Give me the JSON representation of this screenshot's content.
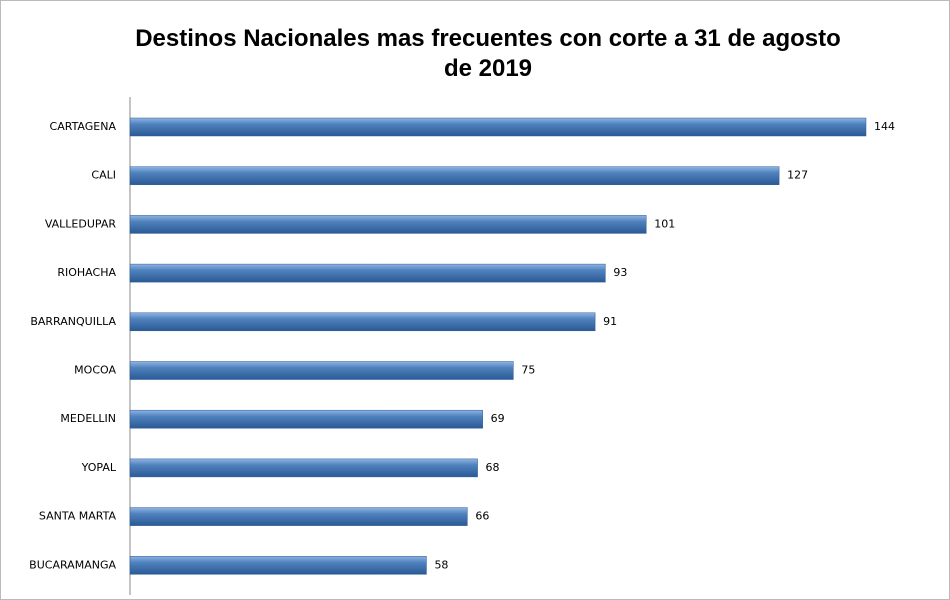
{
  "chart_data": {
    "type": "bar",
    "orientation": "horizontal",
    "title": "Destinos Nacionales mas frecuentes con corte a 31 de agosto de 2019",
    "categories": [
      "CARTAGENA",
      "CALI",
      "VALLEDUPAR",
      "RIOHACHA",
      "BARRANQUILLA",
      "MOCOA",
      "MEDELLIN",
      "YOPAL",
      "SANTA MARTA",
      "BUCARAMANGA"
    ],
    "values": [
      144,
      127,
      101,
      93,
      91,
      75,
      69,
      68,
      66,
      58
    ],
    "color": "#4f81bd"
  }
}
